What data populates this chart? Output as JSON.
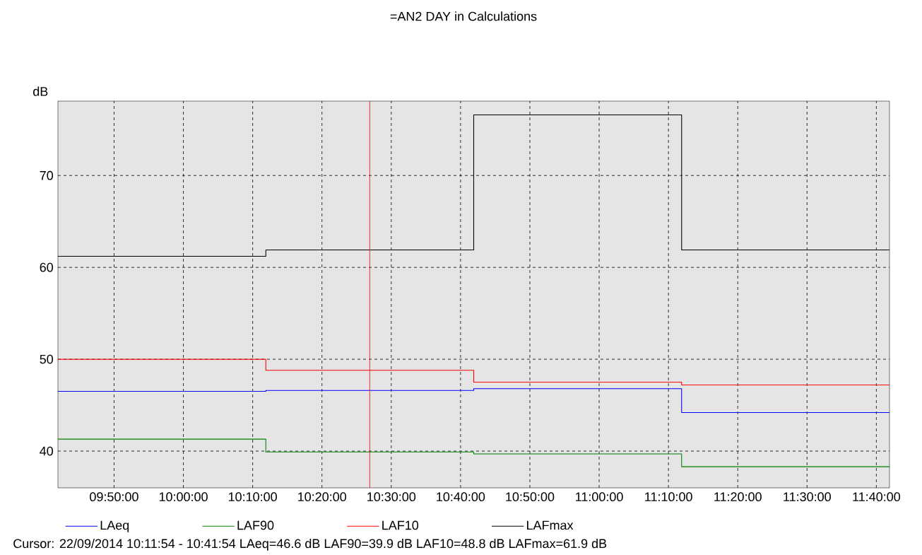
{
  "chart_data": {
    "type": "step",
    "title": "=AN2 DAY in Calculations",
    "ylabel": "dB",
    "x": [
      9.698333,
      10.198333,
      10.698333,
      11.198333,
      11.698333
    ],
    "series": [
      {
        "name": "LAeq",
        "color": "#0000ff",
        "values": [
          46.5,
          46.6,
          46.8,
          44.2,
          44.2
        ]
      },
      {
        "name": "LAF90",
        "color": "#008000",
        "values": [
          41.3,
          39.9,
          39.7,
          38.3,
          38.3
        ]
      },
      {
        "name": "LAF10",
        "color": "#ff0000",
        "values": [
          50.0,
          48.8,
          47.5,
          47.2,
          47.2
        ]
      },
      {
        "name": "LAFmax",
        "color": "#000000",
        "values": [
          61.2,
          61.9,
          76.6,
          61.9,
          61.9
        ]
      }
    ],
    "xlim": [
      9.698333,
      11.698333
    ],
    "ylim": [
      36,
      78.1
    ],
    "xticks": [
      {
        "value": 9.833333,
        "label": "09:50:00"
      },
      {
        "value": 10.0,
        "label": "10:00:00"
      },
      {
        "value": 10.166667,
        "label": "10:10:00"
      },
      {
        "value": 10.333333,
        "label": "10:20:00"
      },
      {
        "value": 10.5,
        "label": "10:30:00"
      },
      {
        "value": 10.666667,
        "label": "10:40:00"
      },
      {
        "value": 10.833333,
        "label": "10:50:00"
      },
      {
        "value": 11.0,
        "label": "11:00:00"
      },
      {
        "value": 11.166667,
        "label": "11:10:00"
      },
      {
        "value": 11.333333,
        "label": "11:20:00"
      },
      {
        "value": 11.5,
        "label": "11:30:00"
      },
      {
        "value": 11.666667,
        "label": "11:40:00"
      }
    ],
    "yticks": [
      40,
      50,
      60,
      70
    ],
    "ref_lines": [
      {
        "axis": "x",
        "value": 10.448333,
        "color": "#ff0000"
      }
    ],
    "annotations": [
      "Cursor: 22/09/2014 10:11:54 - 10:41:54  LAeq=46.6 dB  LAF90=39.9 dB  LAF10=48.8 dB  LAFmax=61.9 dB"
    ],
    "grid": true,
    "legend": "bottom"
  }
}
